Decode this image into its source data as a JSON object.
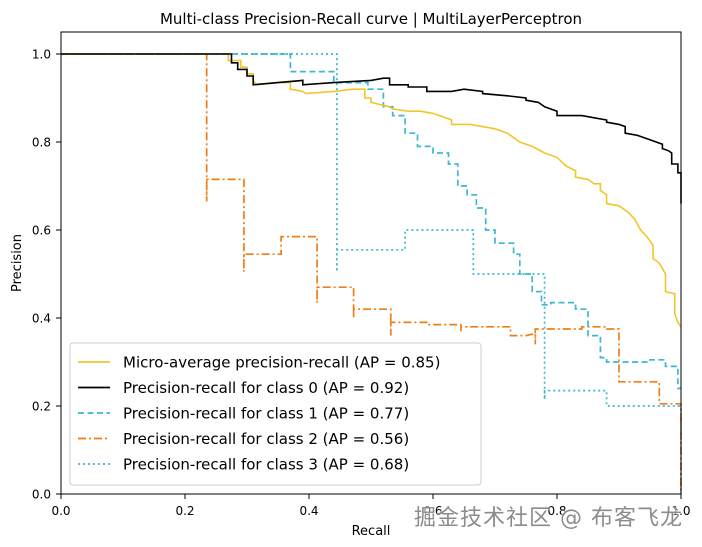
{
  "chart_data": {
    "type": "line",
    "title": "Multi-class Precision-Recall curve | MultiLayerPerceptron",
    "xlabel": "Recall",
    "ylabel": "Precision",
    "xlim": [
      0.0,
      1.0
    ],
    "ylim": [
      0.0,
      1.05
    ],
    "xticks": [
      "0.0",
      "0.2",
      "0.4",
      "0.6",
      "0.8",
      "1.0"
    ],
    "yticks": [
      "0.0",
      "0.2",
      "0.4",
      "0.6",
      "0.8",
      "1.0"
    ],
    "xtick_values": [
      0,
      0.2,
      0.4,
      0.6,
      0.8,
      1.0
    ],
    "ytick_values": [
      0,
      0.2,
      0.4,
      0.6,
      0.8,
      1.0
    ],
    "grid": false,
    "legend_position": "lower-left",
    "series": [
      {
        "name": "Micro-average precision-recall (AP = 0.85)",
        "color": "#f2c62b",
        "style": "solid",
        "points": [
          [
            0,
            1.0
          ],
          [
            0.27,
            1.0
          ],
          [
            0.27,
            0.985
          ],
          [
            0.29,
            0.985
          ],
          [
            0.29,
            0.97
          ],
          [
            0.3,
            0.97
          ],
          [
            0.3,
            0.955
          ],
          [
            0.31,
            0.955
          ],
          [
            0.31,
            0.94
          ],
          [
            0.315,
            0.93
          ],
          [
            0.35,
            0.935
          ],
          [
            0.37,
            0.935
          ],
          [
            0.37,
            0.92
          ],
          [
            0.39,
            0.915
          ],
          [
            0.395,
            0.91
          ],
          [
            0.44,
            0.915
          ],
          [
            0.47,
            0.92
          ],
          [
            0.49,
            0.92
          ],
          [
            0.49,
            0.9
          ],
          [
            0.5,
            0.9
          ],
          [
            0.5,
            0.89
          ],
          [
            0.53,
            0.88
          ],
          [
            0.535,
            0.875
          ],
          [
            0.56,
            0.87
          ],
          [
            0.58,
            0.87
          ],
          [
            0.6,
            0.865
          ],
          [
            0.62,
            0.855
          ],
          [
            0.63,
            0.85
          ],
          [
            0.63,
            0.84
          ],
          [
            0.66,
            0.84
          ],
          [
            0.7,
            0.83
          ],
          [
            0.72,
            0.82
          ],
          [
            0.74,
            0.8
          ],
          [
            0.76,
            0.79
          ],
          [
            0.78,
            0.775
          ],
          [
            0.8,
            0.765
          ],
          [
            0.815,
            0.745
          ],
          [
            0.83,
            0.735
          ],
          [
            0.83,
            0.72
          ],
          [
            0.85,
            0.715
          ],
          [
            0.86,
            0.705
          ],
          [
            0.87,
            0.705
          ],
          [
            0.87,
            0.69
          ],
          [
            0.88,
            0.68
          ],
          [
            0.88,
            0.66
          ],
          [
            0.9,
            0.655
          ],
          [
            0.915,
            0.64
          ],
          [
            0.925,
            0.625
          ],
          [
            0.935,
            0.6
          ],
          [
            0.945,
            0.585
          ],
          [
            0.955,
            0.565
          ],
          [
            0.955,
            0.535
          ],
          [
            0.965,
            0.525
          ],
          [
            0.975,
            0.5
          ],
          [
            0.975,
            0.46
          ],
          [
            0.99,
            0.455
          ],
          [
            0.99,
            0.41
          ],
          [
            0.995,
            0.39
          ],
          [
            1.0,
            0.38
          ]
        ]
      },
      {
        "name": "Precision-recall for class 0 (AP = 0.92)",
        "color": "#000000",
        "style": "solid",
        "points": [
          [
            0,
            1.0
          ],
          [
            0.275,
            1.0
          ],
          [
            0.275,
            0.98
          ],
          [
            0.285,
            0.98
          ],
          [
            0.285,
            0.965
          ],
          [
            0.3,
            0.965
          ],
          [
            0.3,
            0.95
          ],
          [
            0.31,
            0.95
          ],
          [
            0.31,
            0.93
          ],
          [
            0.35,
            0.935
          ],
          [
            0.39,
            0.94
          ],
          [
            0.39,
            0.93
          ],
          [
            0.44,
            0.935
          ],
          [
            0.5,
            0.94
          ],
          [
            0.52,
            0.945
          ],
          [
            0.53,
            0.945
          ],
          [
            0.53,
            0.93
          ],
          [
            0.56,
            0.93
          ],
          [
            0.56,
            0.925
          ],
          [
            0.59,
            0.925
          ],
          [
            0.59,
            0.915
          ],
          [
            0.63,
            0.915
          ],
          [
            0.65,
            0.92
          ],
          [
            0.68,
            0.915
          ],
          [
            0.68,
            0.91
          ],
          [
            0.72,
            0.905
          ],
          [
            0.75,
            0.9
          ],
          [
            0.75,
            0.895
          ],
          [
            0.77,
            0.89
          ],
          [
            0.78,
            0.88
          ],
          [
            0.79,
            0.875
          ],
          [
            0.8,
            0.87
          ],
          [
            0.8,
            0.86
          ],
          [
            0.84,
            0.86
          ],
          [
            0.86,
            0.855
          ],
          [
            0.88,
            0.85
          ],
          [
            0.88,
            0.845
          ],
          [
            0.9,
            0.84
          ],
          [
            0.9,
            0.84
          ],
          [
            0.91,
            0.835
          ],
          [
            0.91,
            0.82
          ],
          [
            0.93,
            0.815
          ],
          [
            0.94,
            0.81
          ],
          [
            0.95,
            0.805
          ],
          [
            0.96,
            0.8
          ],
          [
            0.97,
            0.795
          ],
          [
            0.97,
            0.785
          ],
          [
            0.98,
            0.78
          ],
          [
            0.985,
            0.775
          ],
          [
            0.985,
            0.75
          ],
          [
            0.995,
            0.75
          ],
          [
            0.995,
            0.73
          ],
          [
            1.0,
            0.73
          ],
          [
            1.0,
            0.66
          ]
        ]
      },
      {
        "name": "Precision-recall for class 1 (AP = 0.77)",
        "color": "#3db8d0",
        "style": "dashed",
        "points": [
          [
            0,
            1.0
          ],
          [
            0.37,
            1.0
          ],
          [
            0.37,
            0.96
          ],
          [
            0.44,
            0.96
          ],
          [
            0.44,
            0.935
          ],
          [
            0.495,
            0.935
          ],
          [
            0.495,
            0.92
          ],
          [
            0.52,
            0.92
          ],
          [
            0.52,
            0.88
          ],
          [
            0.535,
            0.88
          ],
          [
            0.535,
            0.86
          ],
          [
            0.555,
            0.86
          ],
          [
            0.555,
            0.82
          ],
          [
            0.575,
            0.82
          ],
          [
            0.575,
            0.79
          ],
          [
            0.6,
            0.79
          ],
          [
            0.6,
            0.775
          ],
          [
            0.625,
            0.775
          ],
          [
            0.625,
            0.75
          ],
          [
            0.64,
            0.75
          ],
          [
            0.64,
            0.7
          ],
          [
            0.655,
            0.7
          ],
          [
            0.655,
            0.68
          ],
          [
            0.67,
            0.68
          ],
          [
            0.67,
            0.65
          ],
          [
            0.685,
            0.65
          ],
          [
            0.685,
            0.6
          ],
          [
            0.7,
            0.6
          ],
          [
            0.7,
            0.57
          ],
          [
            0.73,
            0.57
          ],
          [
            0.73,
            0.545
          ],
          [
            0.74,
            0.545
          ],
          [
            0.74,
            0.5
          ],
          [
            0.76,
            0.5
          ],
          [
            0.76,
            0.46
          ],
          [
            0.775,
            0.46
          ],
          [
            0.775,
            0.43
          ],
          [
            0.79,
            0.43
          ],
          [
            0.79,
            0.435
          ],
          [
            0.83,
            0.435
          ],
          [
            0.83,
            0.42
          ],
          [
            0.85,
            0.42
          ],
          [
            0.85,
            0.36
          ],
          [
            0.87,
            0.36
          ],
          [
            0.87,
            0.31
          ],
          [
            0.88,
            0.31
          ],
          [
            0.88,
            0.3
          ],
          [
            0.95,
            0.3
          ],
          [
            0.95,
            0.305
          ],
          [
            0.975,
            0.305
          ],
          [
            0.975,
            0.29
          ],
          [
            0.995,
            0.29
          ],
          [
            0.995,
            0.24
          ],
          [
            1.0,
            0.24
          ]
        ]
      },
      {
        "name": "Precision-recall for class 2 (AP = 0.56)",
        "color": "#f07e16",
        "style": "dashdot",
        "points": [
          [
            0,
            1.0
          ],
          [
            0.235,
            1.0
          ],
          [
            0.235,
            0.665
          ],
          [
            0.235,
            0.715
          ],
          [
            0.295,
            0.715
          ],
          [
            0.295,
            0.505
          ],
          [
            0.295,
            0.545
          ],
          [
            0.355,
            0.545
          ],
          [
            0.355,
            0.585
          ],
          [
            0.413,
            0.585
          ],
          [
            0.413,
            0.435
          ],
          [
            0.413,
            0.47
          ],
          [
            0.472,
            0.47
          ],
          [
            0.472,
            0.4
          ],
          [
            0.472,
            0.42
          ],
          [
            0.532,
            0.42
          ],
          [
            0.532,
            0.36
          ],
          [
            0.532,
            0.39
          ],
          [
            0.59,
            0.39
          ],
          [
            0.59,
            0.385
          ],
          [
            0.645,
            0.385
          ],
          [
            0.645,
            0.37
          ],
          [
            0.645,
            0.38
          ],
          [
            0.725,
            0.38
          ],
          [
            0.725,
            0.36
          ],
          [
            0.75,
            0.36
          ],
          [
            0.765,
            0.365
          ],
          [
            0.765,
            0.34
          ],
          [
            0.765,
            0.375
          ],
          [
            0.84,
            0.375
          ],
          [
            0.84,
            0.38
          ],
          [
            0.88,
            0.38
          ],
          [
            0.88,
            0.375
          ],
          [
            0.9,
            0.375
          ],
          [
            0.9,
            0.255
          ],
          [
            0.965,
            0.255
          ],
          [
            0.965,
            0.205
          ],
          [
            1.0,
            0.205
          ],
          [
            1.0,
            0.0
          ]
        ]
      },
      {
        "name": "Precision-recall for class 3 (AP = 0.68)",
        "color": "#3db8d0",
        "style": "dotted",
        "points": [
          [
            0,
            1.0
          ],
          [
            0.445,
            1.0
          ],
          [
            0.445,
            0.505
          ],
          [
            0.445,
            0.555
          ],
          [
            0.555,
            0.555
          ],
          [
            0.555,
            0.6
          ],
          [
            0.665,
            0.6
          ],
          [
            0.665,
            0.5
          ],
          [
            0.78,
            0.5
          ],
          [
            0.78,
            0.215
          ],
          [
            0.78,
            0.235
          ],
          [
            0.88,
            0.235
          ],
          [
            0.88,
            0.2
          ],
          [
            1.0,
            0.2
          ],
          [
            1.0,
            0.0
          ]
        ]
      }
    ]
  },
  "watermark": "掘金技术社区 @ 布客飞龙"
}
